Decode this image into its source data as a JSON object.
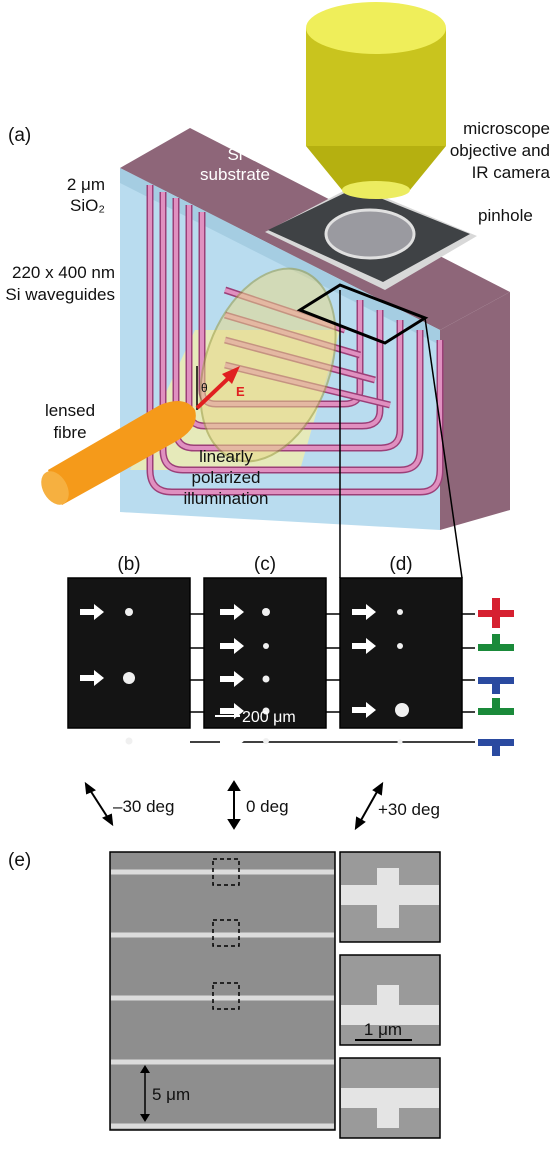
{
  "labels": {
    "a": "(a)",
    "si_substrate": [
      "Si",
      "substrate"
    ],
    "sio2": [
      "2 μm",
      "SiO₂"
    ],
    "waveguides": [
      "220 x 400 nm",
      "Si waveguides"
    ],
    "objective": [
      "microscope",
      "objective and",
      "IR camera"
    ],
    "pinhole": "pinhole",
    "fibre": [
      "lensed",
      "fibre"
    ],
    "illumination": [
      "linearly",
      "polarized",
      "illumination"
    ],
    "theta": "θ",
    "e_field": "E"
  },
  "panels": [
    {
      "label": "(b)",
      "angle": "–30 deg"
    },
    {
      "label": "(c)",
      "angle": "0 deg",
      "scale": "200 μm"
    },
    {
      "label": "(d)",
      "angle": "+30 deg"
    }
  ],
  "sem": {
    "label": "(e)",
    "scale_large": "5 μm",
    "scale_small": "1 μm"
  }
}
